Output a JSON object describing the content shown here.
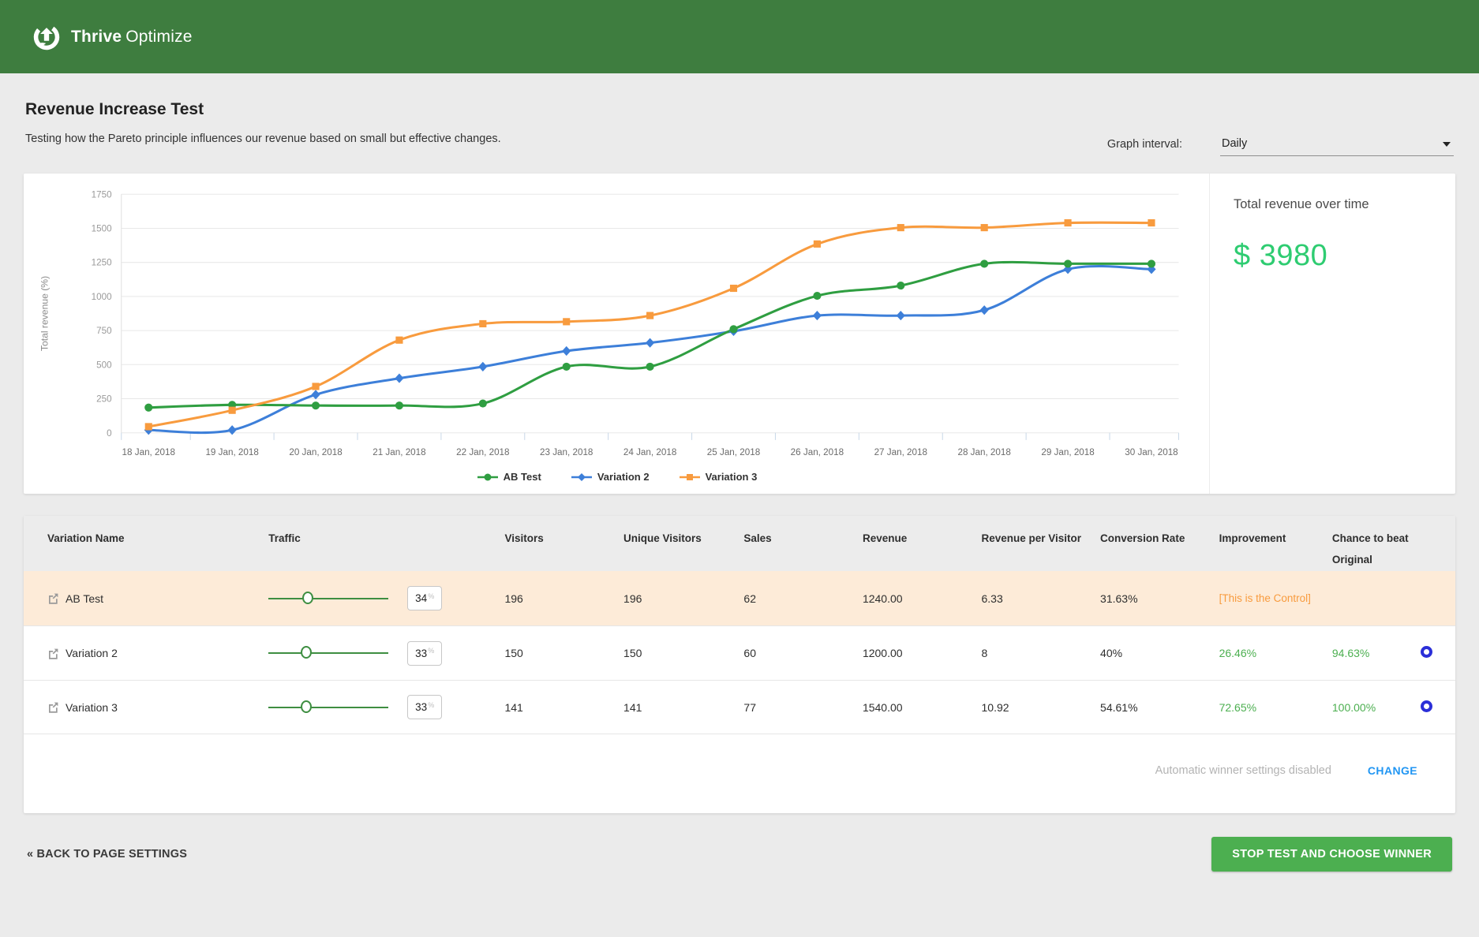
{
  "topbar": {
    "brand_bold": "Thrive",
    "brand_light": "Optimize"
  },
  "page": {
    "title": "Revenue Increase Test",
    "subtitle": "Testing how the Pareto principle influences our revenue based on small but effective changes.",
    "graph_interval_label": "Graph interval:",
    "graph_interval_value": "Daily"
  },
  "chart_data": {
    "type": "line",
    "title": "Total revenue over time",
    "xlabel": "",
    "ylabel": "Total revenue (%)",
    "ylim": [
      0,
      1750
    ],
    "yticks": [
      0,
      250,
      500,
      750,
      1000,
      1250,
      1500,
      1750
    ],
    "grid": true,
    "legend_position": "bottom",
    "x": [
      "18 Jan, 2018",
      "19 Jan, 2018",
      "20 Jan, 2018",
      "21 Jan, 2018",
      "22 Jan, 2018",
      "23 Jan, 2018",
      "24 Jan, 2018",
      "25 Jan, 2018",
      "26 Jan, 2018",
      "27 Jan, 2018",
      "28 Jan, 2018",
      "29 Jan, 2018",
      "30 Jan, 2018"
    ],
    "series": [
      {
        "name": "AB Test",
        "color": "#2f9e41",
        "marker": "circle",
        "values": [
          185,
          205,
          200,
          200,
          215,
          485,
          485,
          760,
          1005,
          1080,
          1240,
          1240,
          1240
        ]
      },
      {
        "name": "Variation 2",
        "color": "#3d7fd9",
        "marker": "diamond",
        "values": [
          20,
          20,
          280,
          400,
          485,
          600,
          660,
          745,
          860,
          860,
          900,
          1200,
          1200
        ]
      },
      {
        "name": "Variation 3",
        "color": "#f89b3e",
        "marker": "square",
        "values": [
          45,
          165,
          340,
          680,
          800,
          815,
          860,
          1060,
          1385,
          1505,
          1505,
          1540,
          1540
        ]
      }
    ]
  },
  "total_panel": {
    "label": "Total revenue over time",
    "value": "$ 3980"
  },
  "table": {
    "columns": [
      "Variation Name",
      "Traffic",
      "Visitors",
      "Unique Visitors",
      "Sales",
      "Revenue",
      "Revenue per Visitor",
      "Conversion Rate",
      "Improvement",
      "Chance to beat Original"
    ],
    "rows": [
      {
        "name": "AB Test",
        "traffic": "34",
        "visitors": "196",
        "unique_visitors": "196",
        "sales": "62",
        "revenue": "1240.00",
        "revenue_per_visitor": "6.33",
        "conversion_rate": "31.63%",
        "improvement": "[This is the Control]",
        "chance": "",
        "control": true,
        "highlight": true,
        "winner_icon": false
      },
      {
        "name": "Variation 2",
        "traffic": "33",
        "visitors": "150",
        "unique_visitors": "150",
        "sales": "60",
        "revenue": "1200.00",
        "revenue_per_visitor": "8",
        "conversion_rate": "40%",
        "improvement": "26.46%",
        "chance": "94.63%",
        "control": false,
        "highlight": false,
        "winner_icon": true
      },
      {
        "name": "Variation 3",
        "traffic": "33",
        "visitors": "141",
        "unique_visitors": "141",
        "sales": "77",
        "revenue": "1540.00",
        "revenue_per_visitor": "10.92",
        "conversion_rate": "54.61%",
        "improvement": "72.65%",
        "chance": "100.00%",
        "control": false,
        "highlight": false,
        "winner_icon": true
      }
    ],
    "auto_winner_text": "Automatic winner settings disabled",
    "change_label": "CHANGE"
  },
  "footer": {
    "back_label": "« BACK TO PAGE SETTINGS",
    "stop_label": "STOP TEST AND CHOOSE WINNER"
  },
  "colors": {
    "header_green": "#3e7d3f",
    "slider_green": "#3e8e41",
    "button_green": "#4caf50",
    "total_green": "#2ecc71",
    "link_blue": "#2196f3",
    "control_orange": "#f89b3e",
    "positive_green": "#4caf50",
    "winner_blue": "#2b2fd8"
  }
}
